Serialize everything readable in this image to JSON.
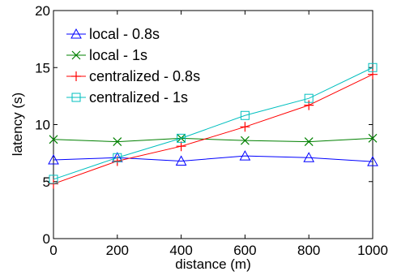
{
  "chart_data": {
    "type": "line",
    "xlabel": "distance (m)",
    "ylabel": "latency (s)",
    "xlim": [
      0,
      1000
    ],
    "ylim": [
      0,
      20
    ],
    "xticks": [
      0,
      200,
      400,
      600,
      800,
      1000
    ],
    "yticks": [
      0,
      5,
      10,
      15,
      20
    ],
    "grid": false,
    "legend_position": "top-left",
    "x": [
      0,
      200,
      400,
      600,
      800,
      1000
    ],
    "series": [
      {
        "name": "local - 0.8s",
        "color": "#0000ff",
        "marker": "triangle",
        "values": [
          6.9,
          7.1,
          6.8,
          7.25,
          7.1,
          6.75
        ]
      },
      {
        "name": "local - 1s",
        "color": "#008000",
        "marker": "x",
        "values": [
          8.7,
          8.5,
          8.8,
          8.6,
          8.5,
          8.8
        ]
      },
      {
        "name": "centralized - 0.8s",
        "color": "#ff0000",
        "marker": "plus",
        "values": [
          4.8,
          6.8,
          8.1,
          9.8,
          11.7,
          14.4
        ]
      },
      {
        "name": "centralized - 1s",
        "color": "#00bfbf",
        "marker": "square",
        "values": [
          5.2,
          7.1,
          8.8,
          10.8,
          12.3,
          15.0
        ]
      }
    ]
  }
}
